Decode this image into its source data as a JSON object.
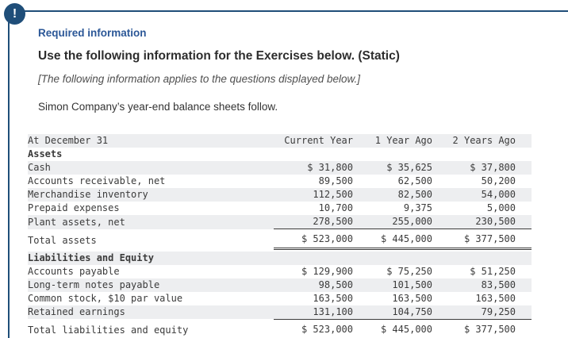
{
  "colors": {
    "accent": "#1f4e79",
    "required": "#2b5797",
    "stripe": "#edeef0"
  },
  "alert": {
    "icon": "!"
  },
  "header": {
    "required_label": "Required information",
    "title": "Use the following information for the Exercises below. (Static)",
    "note": "[The following information applies to the questions displayed below.]",
    "intro": "Simon Company’s year-end balance sheets follow."
  },
  "table": {
    "rows": [
      {
        "label": "At December 31",
        "values": [
          "Current Year",
          "1 Year Ago",
          "2 Years Ago"
        ]
      },
      {
        "label": "Assets",
        "values": [
          "",
          "",
          ""
        ]
      },
      {
        "label": "Cash",
        "values": [
          "$ 31,800",
          "$ 35,625",
          "$ 37,800"
        ]
      },
      {
        "label": "Accounts receivable, net",
        "values": [
          "89,500",
          "62,500",
          "50,200"
        ]
      },
      {
        "label": "Merchandise inventory",
        "values": [
          "112,500",
          "82,500",
          "54,000"
        ]
      },
      {
        "label": "Prepaid expenses",
        "values": [
          "10,700",
          "9,375",
          "5,000"
        ]
      },
      {
        "label": "Plant assets, net",
        "values": [
          "278,500",
          "255,000",
          "230,500"
        ]
      },
      {
        "label": "Total assets",
        "values": [
          "$ 523,000",
          "$ 445,000",
          "$ 377,500"
        ]
      },
      {
        "label": "Liabilities and Equity",
        "values": [
          "",
          "",
          ""
        ]
      },
      {
        "label": "Accounts payable",
        "values": [
          "$ 129,900",
          "$ 75,250",
          "$ 51,250"
        ]
      },
      {
        "label": "Long-term notes payable",
        "values": [
          "98,500",
          "101,500",
          "83,500"
        ]
      },
      {
        "label": "Common stock, $10 par value",
        "values": [
          "163,500",
          "163,500",
          "163,500"
        ]
      },
      {
        "label": "Retained earnings",
        "values": [
          "131,100",
          "104,750",
          "79,250"
        ]
      },
      {
        "label": "Total liabilities and equity",
        "values": [
          "$ 523,000",
          "$ 445,000",
          "$ 377,500"
        ]
      }
    ]
  }
}
